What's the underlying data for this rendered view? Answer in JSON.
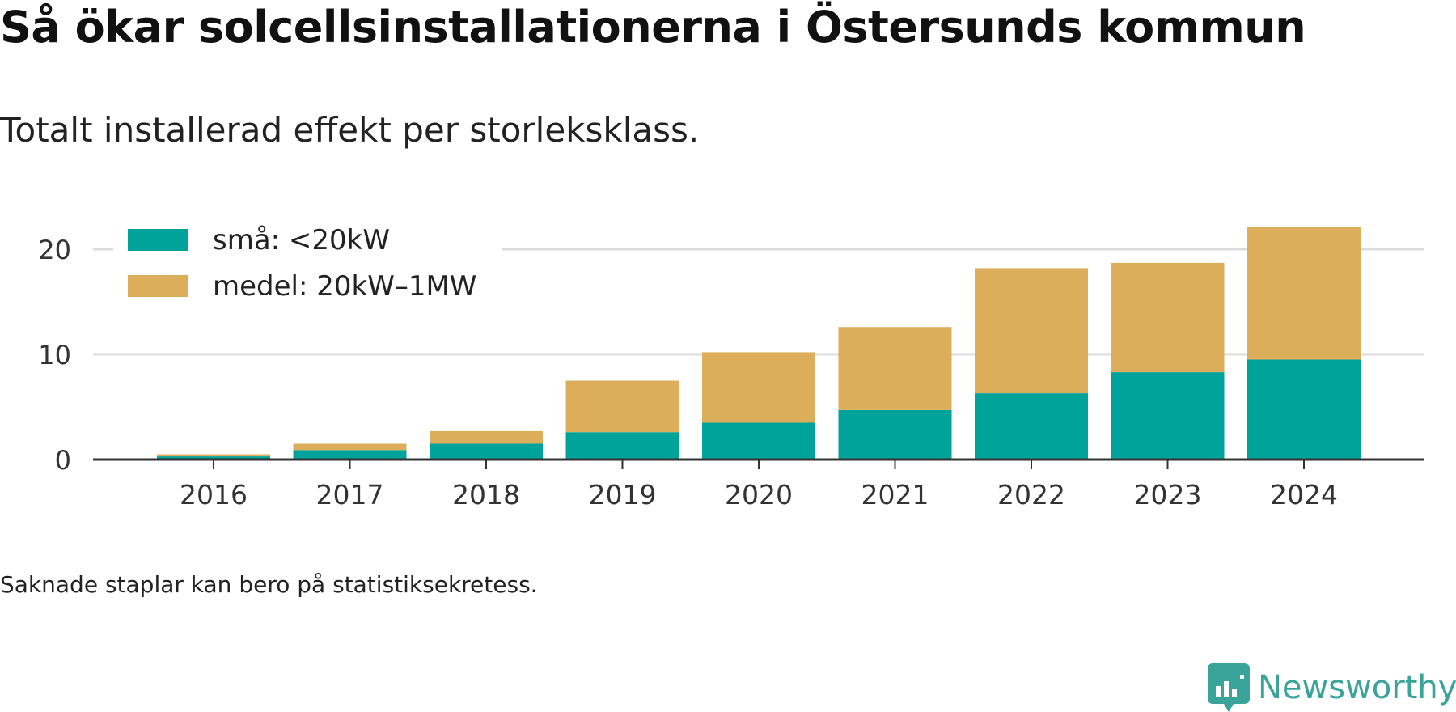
{
  "title": "Så ökar solcellsinstallationerna i Östersunds kommun",
  "subtitle": "Totalt installerad effekt per storleksklass.",
  "footnote": "Saknade staplar kan bero på statistiksekretess.",
  "brand": {
    "name": "Newsworthy",
    "icon": "newsworthy-logo-icon",
    "color": "#3aa39a"
  },
  "chart_data": {
    "type": "bar",
    "stacked": true,
    "categories": [
      "2016",
      "2017",
      "2018",
      "2019",
      "2020",
      "2021",
      "2022",
      "2023",
      "2024"
    ],
    "series": [
      {
        "name": "små: <20kW",
        "color": "#00a39a",
        "values": [
          0.3,
          0.9,
          1.5,
          2.6,
          3.5,
          4.7,
          6.3,
          8.3,
          9.5
        ]
      },
      {
        "name": "medel: 20kW–1MW",
        "color": "#dcae5c",
        "values": [
          0.2,
          0.6,
          1.2,
          4.9,
          6.7,
          7.9,
          11.9,
          10.4,
          12.6
        ]
      }
    ],
    "yticks": [
      0,
      10,
      20
    ],
    "ylim": [
      0,
      23
    ],
    "grid": true,
    "legend": "top-left",
    "xlabel": "",
    "ylabel": ""
  }
}
